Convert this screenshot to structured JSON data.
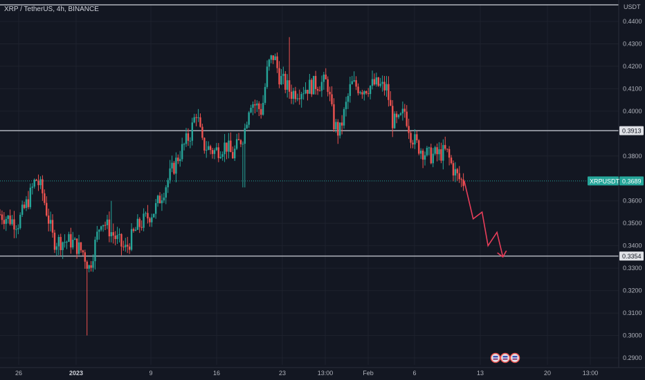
{
  "header": {
    "title": "XRP / TetherUS, 4h, BINANCE"
  },
  "price_axis": {
    "currency": "USDT",
    "ticks": [
      "0.4400",
      "0.4300",
      "0.4200",
      "0.4100",
      "0.4000",
      "0.3800",
      "0.3600",
      "0.3500",
      "0.3400",
      "0.3300",
      "0.3200",
      "0.3100",
      "0.3000",
      "0.2900"
    ]
  },
  "time_axis": {
    "ticks": [
      {
        "label": "26",
        "bold": false
      },
      {
        "label": "2023",
        "bold": true
      },
      {
        "label": "9",
        "bold": false
      },
      {
        "label": "16",
        "bold": false
      },
      {
        "label": "23",
        "bold": false
      },
      {
        "label": "13:00",
        "bold": false
      },
      {
        "label": "Feb",
        "bold": false
      },
      {
        "label": "6",
        "bold": false
      },
      {
        "label": "13",
        "bold": false
      },
      {
        "label": "20",
        "bold": false
      },
      {
        "label": "13:00",
        "bold": false
      }
    ]
  },
  "levels": {
    "resistance": {
      "value": 0.3913,
      "label": "0.3913"
    },
    "support": {
      "value": 0.3354,
      "label": "0.3354"
    },
    "top": {
      "value": 0.4445
    }
  },
  "last_price": {
    "symbol": "XRPUSDT",
    "value": 0.3689,
    "label": "0.3689"
  },
  "colors": {
    "background": "#131722",
    "grid": "#1e222d",
    "up": "#26a69a",
    "down": "#ef5350",
    "projection": "#e83e5a",
    "level_line": "#b2b5be",
    "label_bg": "#dfe1e6",
    "last_price_bg": "#26a69a"
  },
  "event_icons": [
    "flag-icon",
    "flag-icon",
    "flag-icon"
  ],
  "chart_data": {
    "type": "candlestick",
    "ylim": [
      0.288,
      0.446
    ],
    "x_range": [
      0,
      100
    ],
    "candles_anchor": [
      [
        0,
        0.354
      ],
      [
        3,
        0.35
      ],
      [
        5,
        0.362
      ],
      [
        6,
        0.37
      ],
      [
        7,
        0.365
      ],
      [
        9,
        0.342
      ],
      [
        12,
        0.342
      ],
      [
        14,
        0.337
      ],
      [
        15,
        0.33
      ],
      [
        17,
        0.352
      ],
      [
        19,
        0.345
      ],
      [
        21,
        0.338
      ],
      [
        23,
        0.348
      ],
      [
        26,
        0.356
      ],
      [
        28,
        0.368
      ],
      [
        30,
        0.38
      ],
      [
        32,
        0.39
      ],
      [
        33,
        0.4
      ],
      [
        34,
        0.385
      ],
      [
        36,
        0.382
      ],
      [
        38,
        0.385
      ],
      [
        39,
        0.38
      ],
      [
        41,
        0.39
      ],
      [
        42,
        0.405
      ],
      [
        44,
        0.4
      ],
      [
        45,
        0.42
      ],
      [
        46,
        0.425
      ],
      [
        47,
        0.415
      ],
      [
        49,
        0.408
      ],
      [
        51,
        0.41
      ],
      [
        53,
        0.412
      ],
      [
        55,
        0.413
      ],
      [
        56,
        0.395
      ],
      [
        57,
        0.39
      ],
      [
        59,
        0.412
      ],
      [
        61,
        0.41
      ],
      [
        63,
        0.412
      ],
      [
        65,
        0.41
      ],
      [
        66,
        0.395
      ],
      [
        67,
        0.395
      ],
      [
        68,
        0.4
      ],
      [
        69,
        0.39
      ],
      [
        70,
        0.385
      ],
      [
        72,
        0.38
      ],
      [
        74,
        0.381
      ],
      [
        75,
        0.382
      ],
      [
        76,
        0.375
      ],
      [
        77,
        0.37
      ],
      [
        78,
        0.368
      ]
    ],
    "projection": [
      [
        78,
        0.3689
      ],
      [
        79.5,
        0.352
      ],
      [
        81,
        0.355
      ],
      [
        82,
        0.34
      ],
      [
        83.5,
        0.346
      ],
      [
        84.5,
        0.335
      ]
    ]
  }
}
